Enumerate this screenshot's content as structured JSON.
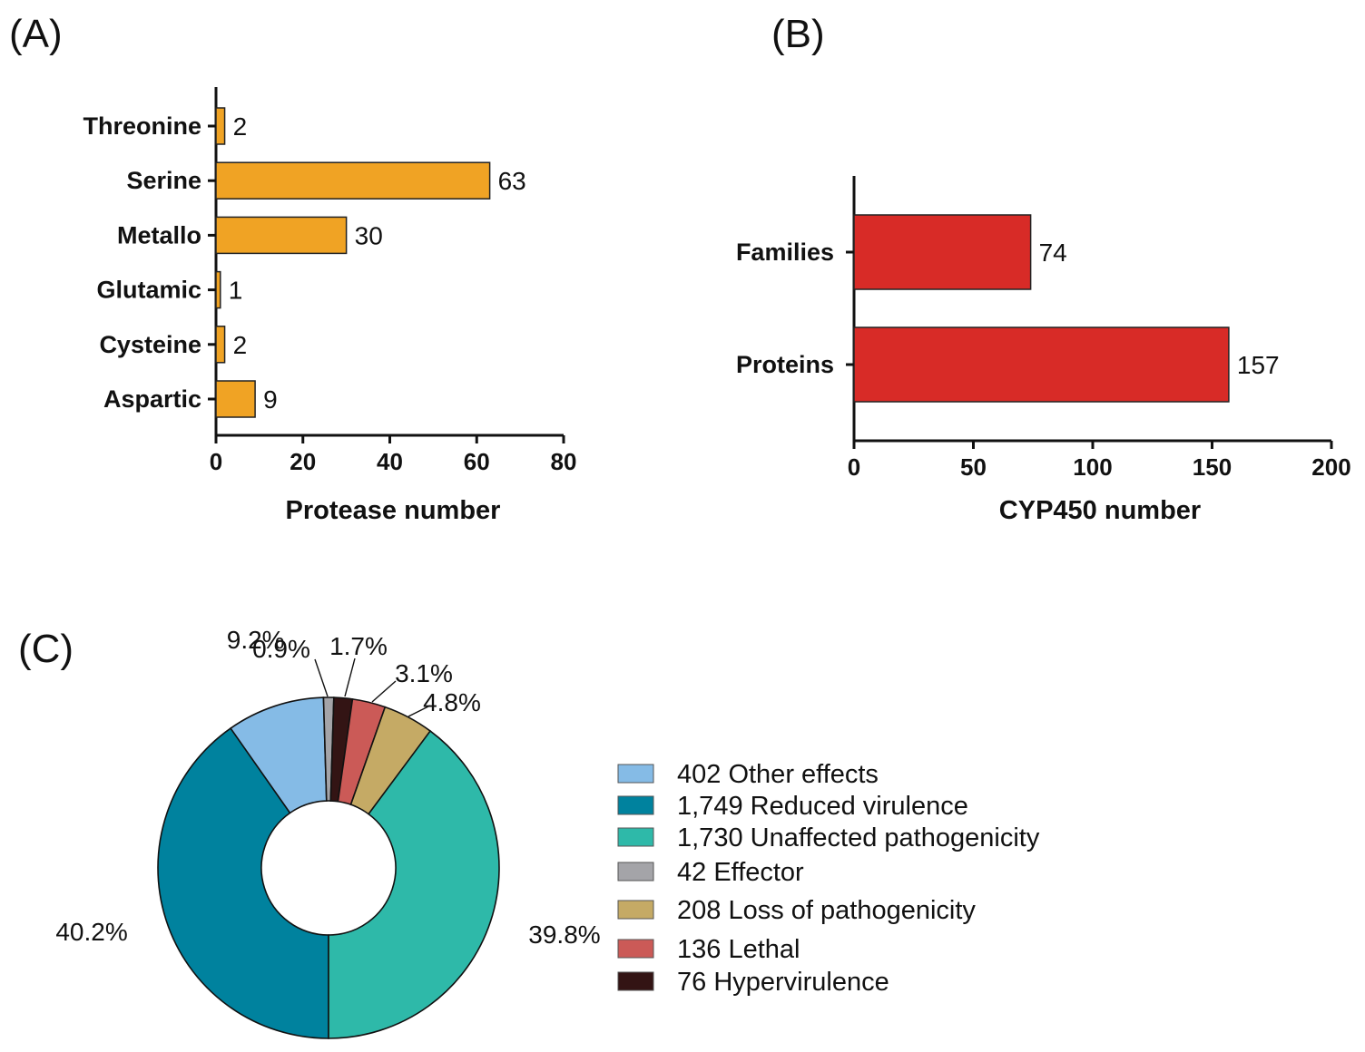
{
  "chart_data": [
    {
      "panel": "(A)",
      "type": "bar",
      "orientation": "horizontal",
      "categories": [
        "Threonine",
        "Serine",
        "Metallo",
        "Glutamic",
        "Cysteine",
        "Aspartic"
      ],
      "values": [
        2,
        63,
        30,
        1,
        2,
        9
      ],
      "xlabel": "Protease number",
      "xlim": [
        0,
        80
      ],
      "xticks": [
        0,
        20,
        40,
        60,
        80
      ],
      "color": "#F0A324"
    },
    {
      "panel": "(B)",
      "type": "bar",
      "orientation": "horizontal",
      "categories": [
        "Families",
        "Proteins"
      ],
      "values": [
        74,
        157
      ],
      "xlabel": "CYP450 number",
      "xlim": [
        0,
        200
      ],
      "xticks": [
        0,
        50,
        100,
        150,
        200
      ],
      "color": "#D82B27"
    },
    {
      "panel": "(C)",
      "type": "pie",
      "donut": true,
      "slices": [
        {
          "label": "402 Other effects",
          "count": 402,
          "percent_label": "9.2%",
          "color": "#85BBE6"
        },
        {
          "label": "1,749 Reduced virulence",
          "count": 1749,
          "percent_label": "40.2%",
          "color": "#00829E"
        },
        {
          "label": "1,730 Unaffected pathogenicity",
          "count": 1730,
          "percent_label": "39.8%",
          "color": "#2EB9A9"
        },
        {
          "label": "42 Effector",
          "count": 42,
          "percent_label": "0.9%",
          "color": "#A4A4A8"
        },
        {
          "label": "208 Loss of pathogenicity",
          "count": 208,
          "percent_label": "4.8%",
          "color": "#C5AA65"
        },
        {
          "label": "136 Lethal",
          "count": 136,
          "percent_label": "3.1%",
          "color": "#CB5A57"
        },
        {
          "label": "76 Hypervirulence",
          "count": 76,
          "percent_label": "1.7%",
          "color": "#331414"
        }
      ]
    }
  ]
}
